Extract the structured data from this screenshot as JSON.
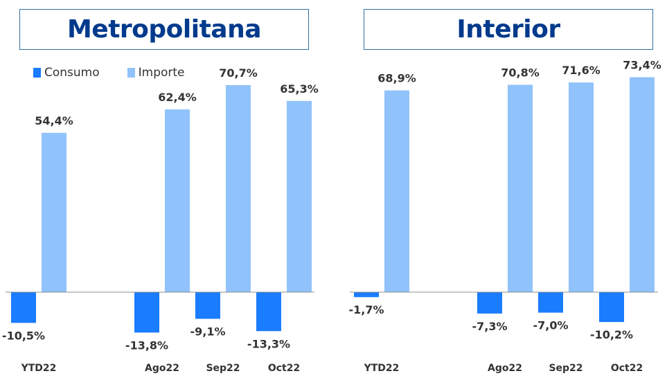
{
  "panels": [
    {
      "title": "Metropolitana"
    },
    {
      "title": "Interior"
    }
  ],
  "legend": [
    {
      "label": "Consumo",
      "color": "#1a7cff"
    },
    {
      "label": "Importe",
      "color": "#90c2fb"
    }
  ],
  "chart_data": [
    {
      "type": "bar",
      "title": "Metropolitana",
      "categories": [
        "YTD22",
        "",
        "Ago22",
        "Sep22",
        "Oct22"
      ],
      "series": [
        {
          "name": "Consumo",
          "values": [
            -10.5,
            null,
            -13.8,
            -9.1,
            -13.3
          ],
          "labels": [
            "-10,5%",
            "",
            "-13,8%",
            "-9,1%",
            "-13,3%"
          ]
        },
        {
          "name": "Importe",
          "values": [
            54.4,
            null,
            62.4,
            70.7,
            65.3
          ],
          "labels": [
            "54,4%",
            "",
            "62,4%",
            "70,7%",
            "65,3%"
          ]
        }
      ]
    },
    {
      "type": "bar",
      "title": "Interior",
      "categories": [
        "YTD22",
        "",
        "Ago22",
        "Sep22",
        "Oct22"
      ],
      "series": [
        {
          "name": "Consumo",
          "values": [
            -1.7,
            null,
            -7.3,
            -7.0,
            -10.2
          ],
          "labels": [
            "-1,7%",
            "",
            "-7,3%",
            "-7,0%",
            "-10,2%"
          ]
        },
        {
          "name": "Importe",
          "values": [
            68.9,
            null,
            70.8,
            71.6,
            73.4
          ],
          "labels": [
            "68,9%",
            "",
            "70,8%",
            "71,6%",
            "73,4%"
          ]
        }
      ]
    }
  ]
}
